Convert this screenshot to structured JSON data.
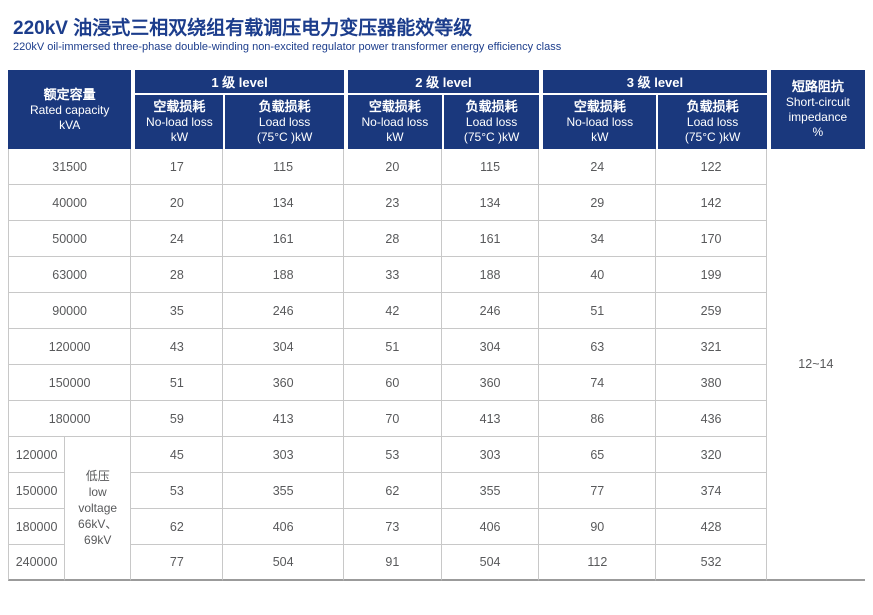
{
  "title": {
    "zh": "220kV 油浸式三相双绕组有载调压电力变压器能效等级",
    "en": "220kV oil-immersed three-phase double-winding non-excited regulator power transformer energy efficiency class"
  },
  "colors": {
    "header_bg": "#1a387d",
    "title_text": "#1c3d8c",
    "data_text": "#58595b",
    "grid_line": "#c8c8c8",
    "bottom_line": "#9b9b9b"
  },
  "table": {
    "capacity_header": {
      "zh": "额定容量",
      "en": "Rated capacity",
      "unit": "kVA"
    },
    "level_groups": [
      {
        "label": "1 级 level"
      },
      {
        "label": "2 级 level"
      },
      {
        "label": "3 级 level"
      }
    ],
    "loss_headers": {
      "no_load": {
        "zh": "空载损耗",
        "en": "No-load loss",
        "unit": "kW"
      },
      "load": {
        "zh": "负载损耗",
        "en": "Load loss",
        "unit": "(75°C )kW"
      }
    },
    "impedance_header": {
      "zh": "短路阻抗",
      "en_line1": "Short-circuit",
      "en_line2": "impedance",
      "unit": "%"
    },
    "impedance_value": "12~14",
    "low_voltage_cell": {
      "lines": [
        "低压",
        "low",
        "voltage",
        "66kV、",
        "69kV"
      ]
    },
    "main_rows": [
      {
        "capacity": "31500",
        "values": [
          "17",
          "115",
          "20",
          "115",
          "24",
          "122"
        ]
      },
      {
        "capacity": "40000",
        "values": [
          "20",
          "134",
          "23",
          "134",
          "29",
          "142"
        ]
      },
      {
        "capacity": "50000",
        "values": [
          "24",
          "161",
          "28",
          "161",
          "34",
          "170"
        ]
      },
      {
        "capacity": "63000",
        "values": [
          "28",
          "188",
          "33",
          "188",
          "40",
          "199"
        ]
      },
      {
        "capacity": "90000",
        "values": [
          "35",
          "246",
          "42",
          "246",
          "51",
          "259"
        ]
      },
      {
        "capacity": "120000",
        "values": [
          "43",
          "304",
          "51",
          "304",
          "63",
          "321"
        ]
      },
      {
        "capacity": "150000",
        "values": [
          "51",
          "360",
          "60",
          "360",
          "74",
          "380"
        ]
      },
      {
        "capacity": "180000",
        "values": [
          "59",
          "413",
          "70",
          "413",
          "86",
          "436"
        ]
      }
    ],
    "low_voltage_rows": [
      {
        "capacity": "120000",
        "values": [
          "45",
          "303",
          "53",
          "303",
          "65",
          "320"
        ]
      },
      {
        "capacity": "150000",
        "values": [
          "53",
          "355",
          "62",
          "355",
          "77",
          "374"
        ]
      },
      {
        "capacity": "180000",
        "values": [
          "62",
          "406",
          "73",
          "406",
          "90",
          "428"
        ]
      },
      {
        "capacity": "240000",
        "values": [
          "77",
          "504",
          "91",
          "504",
          "112",
          "532"
        ]
      }
    ]
  }
}
